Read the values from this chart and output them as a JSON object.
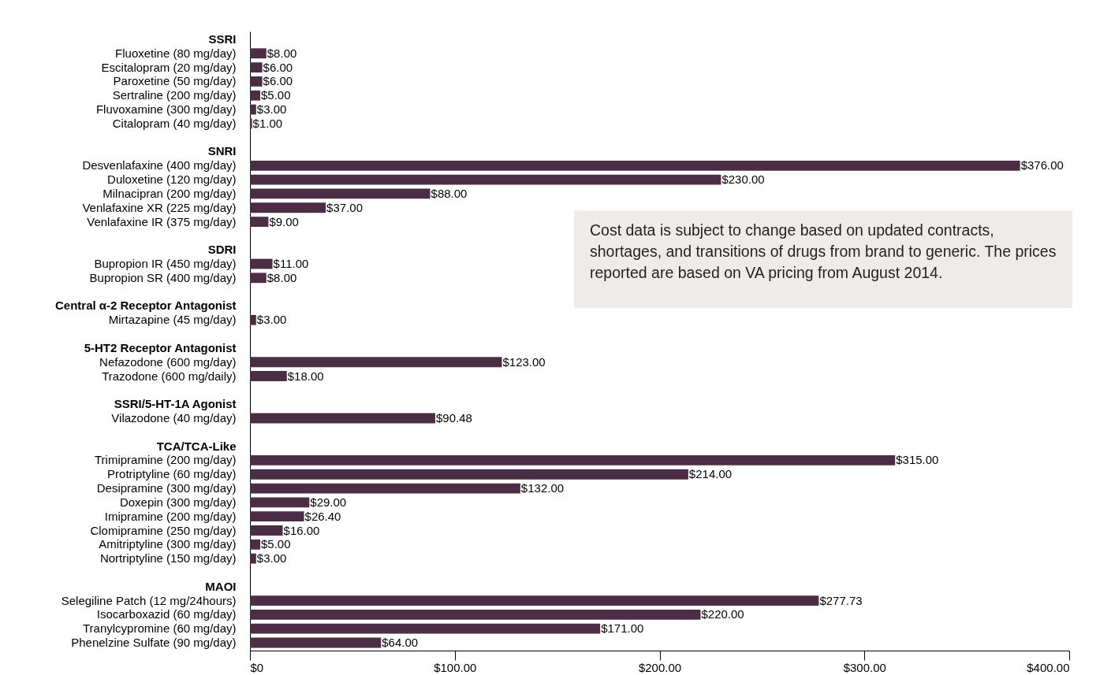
{
  "chart_data": {
    "type": "bar",
    "orientation": "horizontal",
    "color": "#4b2d45",
    "categories": [
      "SSRI",
      "Fluoxetine (80 mg/day)",
      "Escitalopram (20 mg/day)",
      "Paroxetine (50 mg/day)",
      "Sertraline (200 mg/day)",
      "Fluvoxamine (300 mg/day)",
      "Citalopram (40 mg/day)",
      null,
      "SNRI",
      "Desvenlafaxine (400 mg/day)",
      "Duloxetine (120 mg/day)",
      "Milnacipran (200 mg/day)",
      "Venlafaxine XR (225 mg/day)",
      "Venlafaxine IR (375 mg/day)",
      null,
      "SDRI",
      "Bupropion IR (450 mg/day)",
      "Bupropion SR (400 mg/day)",
      null,
      "Central α-2 Receptor Antagonist",
      "Mirtazapine (45 mg/day)",
      null,
      "5-HT2 Receptor Antagonist",
      "Nefazodone (600 mg/day)",
      "Trazodone (600 mg/daily)",
      null,
      "SSRI/5-HT-1A Agonist",
      "Vilazodone (40 mg/day)",
      null,
      "TCA/TCA-Like",
      "Trimipramine (200 mg/day)",
      "Protriptyline (60 mg/day)",
      "Desipramine (300 mg/day)",
      "Doxepin (300 mg/day)",
      "Imipramine (200 mg/day)",
      "Clomipramine (250 mg/day)",
      "Amitriptyline (300 mg/day)",
      "Nortriptyline (150 mg/day)",
      null,
      "MAOI",
      "Selegiline Patch (12 mg/24hours)",
      "Isocarboxazid (60 mg/day)",
      "Tranylcypromine (60 mg/day)",
      "Phenelzine Sulfate (90 mg/day)"
    ],
    "values": [
      null,
      8,
      6,
      6,
      5,
      3,
      1,
      null,
      null,
      376,
      230,
      88,
      37,
      9,
      null,
      null,
      11,
      8,
      null,
      null,
      3,
      null,
      null,
      123,
      18,
      null,
      null,
      90.48,
      null,
      null,
      315,
      214,
      132,
      29,
      26.4,
      16,
      5,
      3,
      null,
      null,
      277.73,
      220,
      171,
      64
    ],
    "value_labels": [
      null,
      "$8.00",
      "$6.00",
      "$6.00",
      "$5.00",
      "$3.00",
      "$1.00",
      null,
      null,
      "$376.00",
      "$230.00",
      "$88.00",
      "$37.00",
      "$9.00",
      null,
      null,
      "$11.00",
      "$8.00",
      null,
      null,
      "$3.00",
      null,
      null,
      "$123.00",
      "$18.00",
      null,
      null,
      "$90.48",
      null,
      null,
      "$315.00",
      "$214.00",
      "$132.00",
      "$29.00",
      "$26.40",
      "$16.00",
      "$5.00",
      "$3.00",
      null,
      null,
      "$277.73",
      "$220.00",
      "$171.00",
      "$64.00"
    ],
    "xlim": [
      0,
      400
    ],
    "xticks": [
      {
        "value": 0,
        "label": "$0"
      },
      {
        "value": 100,
        "label": "$100.00"
      },
      {
        "value": 200,
        "label": "$200.00"
      },
      {
        "value": 300,
        "label": "$300.00"
      },
      {
        "value": 400,
        "label": "$400.00"
      }
    ],
    "grid": false,
    "annotations": [
      "Cost data is subject to change based on updated contracts, shortages, and transitions of drugs from brand to generic.  The prices reported are based on VA pricing from August 2014."
    ]
  }
}
